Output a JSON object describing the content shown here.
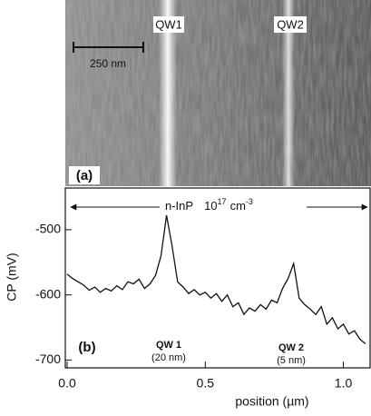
{
  "image_panel": {
    "label": "(a)",
    "markers": [
      "QW1",
      "QW2"
    ],
    "scale_bar": "250 nm"
  },
  "chart_data": {
    "type": "line",
    "panel_label": "(b)",
    "x_label": "position (µm)",
    "y_label": "CP (mV)",
    "region_label": {
      "material": "n-InP",
      "base": "10",
      "exponent": "17",
      "unit": "cm",
      "unit_exponent": "-3"
    },
    "annotations": [
      {
        "name": "QW 1",
        "detail": "(20 nm)"
      },
      {
        "name": "QW 2",
        "detail": "(5 nm)"
      }
    ],
    "x": [
      0,
      0.02,
      0.04,
      0.06,
      0.08,
      0.1,
      0.12,
      0.14,
      0.16,
      0.18,
      0.2,
      0.22,
      0.24,
      0.26,
      0.28,
      0.3,
      0.32,
      0.34,
      0.36,
      0.38,
      0.4,
      0.42,
      0.44,
      0.46,
      0.48,
      0.5,
      0.52,
      0.54,
      0.56,
      0.58,
      0.6,
      0.62,
      0.64,
      0.66,
      0.68,
      0.7,
      0.72,
      0.74,
      0.76,
      0.78,
      0.8,
      0.82,
      0.84,
      0.86,
      0.88,
      0.9,
      0.92,
      0.94,
      0.96,
      0.98,
      1,
      1.02,
      1.04,
      1.06,
      1.08
    ],
    "series": [
      {
        "color": "#111111",
        "values": [
          -568,
          -575,
          -580,
          -585,
          -593,
          -588,
          -596,
          -590,
          -594,
          -586,
          -592,
          -580,
          -583,
          -576,
          -590,
          -583,
          -570,
          -540,
          -478,
          -525,
          -580,
          -588,
          -598,
          -592,
          -600,
          -596,
          -605,
          -598,
          -610,
          -600,
          -618,
          -612,
          -630,
          -620,
          -625,
          -615,
          -622,
          -608,
          -612,
          -590,
          -575,
          -552,
          -605,
          -615,
          -622,
          -630,
          -618,
          -645,
          -635,
          -652,
          -645,
          -660,
          -655,
          -668,
          -675
        ]
      }
    ],
    "xlim": [
      0,
      1.1
    ],
    "ylim": [
      -712,
      -436
    ],
    "xticks": [
      {
        "value": 0,
        "label": "0.0"
      },
      0.5,
      {
        "value": 1,
        "label": "1.0"
      }
    ],
    "yticks": [
      -500,
      -600,
      -700
    ]
  }
}
